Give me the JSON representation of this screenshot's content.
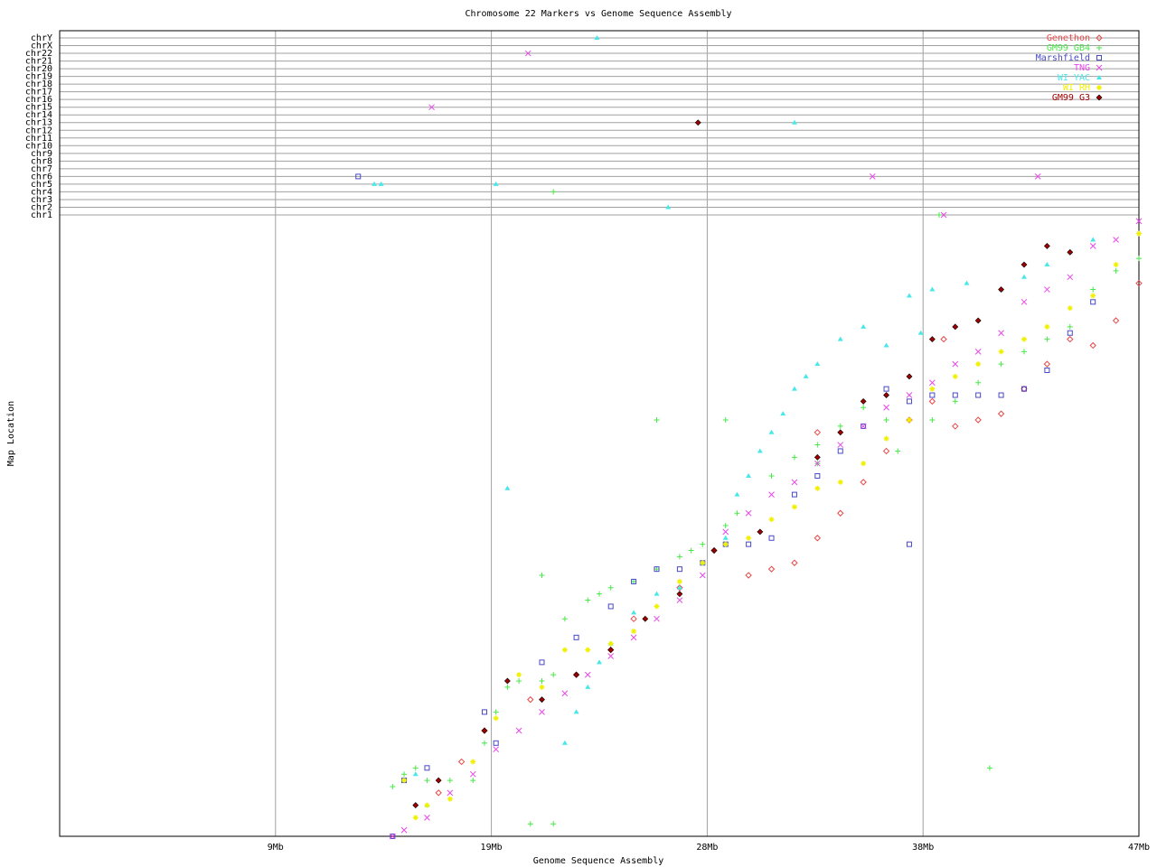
{
  "chart_data": {
    "type": "scatter",
    "title": "Chromosome 22 Markers vs Genome Sequence Assembly",
    "x_label": "Genome Sequence Assembly",
    "y_label": "Map Location",
    "xlim": [
      0,
      47
    ],
    "xticks": [
      {
        "value": 9.4,
        "label": "9Mb"
      },
      {
        "value": 18.8,
        "label": "19Mb"
      },
      {
        "value": 28.2,
        "label": "28Mb"
      },
      {
        "value": 37.6,
        "label": "38Mb"
      },
      {
        "value": 47,
        "label": "47Mb"
      }
    ],
    "ylim": [
      0,
      100
    ],
    "chromosomes": [
      "chrY",
      "chrX",
      "chr22",
      "chr21",
      "chr20",
      "chr19",
      "chr18",
      "chr17",
      "chr16",
      "chr15",
      "chr14",
      "chr13",
      "chr12",
      "chr11",
      "chr10",
      "chr9",
      "chr8",
      "chr7",
      "chr6",
      "chr5",
      "chr4",
      "chr3",
      "chr2",
      "chr1"
    ],
    "grid": true,
    "legend": "upper right",
    "series": [
      {
        "name": "Genethon",
        "color": "#e84848",
        "marker": "diamond",
        "x": [
          16.5,
          17.5,
          18.5,
          20.5,
          22.5,
          24,
          25,
          27,
          28.5,
          30,
          31,
          32,
          33,
          34,
          35,
          36,
          37,
          38,
          39,
          40,
          41,
          42,
          43,
          44,
          45,
          46,
          47,
          33,
          38.5
        ],
        "y": [
          7,
          12,
          17,
          22,
          26,
          30,
          35,
          40,
          46,
          42,
          43,
          44,
          48,
          52,
          57,
          62,
          67,
          70,
          66,
          67,
          68,
          72,
          76,
          80,
          79,
          83,
          89,
          65,
          80
        ],
        "chr_x": [],
        "chr": []
      },
      {
        "name": "GM99 GB4",
        "color": "#48e848",
        "marker": "plus",
        "x": [
          14.5,
          15,
          15.5,
          16,
          17,
          18,
          18.5,
          19,
          19.5,
          20,
          21,
          21.5,
          22,
          23,
          24,
          25,
          26,
          27,
          27.5,
          28,
          29,
          29.5,
          31,
          32,
          33,
          34,
          35,
          36,
          37,
          38,
          39,
          40,
          41,
          42,
          43,
          44,
          45,
          46,
          47,
          21,
          23.5,
          26,
          29,
          40.5,
          20.5,
          21.5,
          33,
          36.5
        ],
        "y": [
          8,
          10,
          11,
          9,
          9,
          9,
          15,
          20,
          24,
          25,
          25,
          26,
          35,
          38,
          40,
          41,
          43,
          45,
          46,
          47,
          50,
          52,
          58,
          61,
          63,
          66,
          69,
          67,
          67,
          67,
          70,
          73,
          76,
          78,
          80,
          82,
          88,
          91,
          93,
          42,
          39,
          67,
          67,
          11,
          2,
          2,
          60,
          62
        ],
        "chr_x": [
          21.5,
          38.3
        ],
        "chr": [
          "chr4",
          "chr1"
        ]
      },
      {
        "name": "Marshfield",
        "color": "#4848c8",
        "marker": "square",
        "x": [
          14.5,
          15,
          16,
          18.5,
          19,
          21,
          22.5,
          24,
          25,
          26,
          27,
          28,
          29,
          30,
          31,
          32,
          33,
          34,
          35,
          36,
          37,
          38,
          39,
          40,
          41,
          42,
          43,
          44,
          45,
          37
        ],
        "y": [
          0,
          9,
          11,
          20,
          15,
          28,
          32,
          37,
          41,
          43,
          43,
          44,
          47,
          47,
          48,
          55,
          58,
          62,
          66,
          72,
          70,
          71,
          71,
          71,
          71,
          72,
          75,
          81,
          86,
          47
        ],
        "chr_x": [
          13.0
        ],
        "chr": [
          "chr6"
        ]
      },
      {
        "name": "TNG",
        "color": "#e848e8",
        "marker": "cross",
        "x": [
          14.5,
          15,
          16,
          17,
          18,
          19,
          20,
          21,
          22,
          23,
          24,
          25,
          26,
          27,
          28,
          29,
          30,
          31,
          32,
          33,
          34,
          35,
          36,
          37,
          38,
          39,
          40,
          41,
          42,
          43,
          44,
          45,
          46,
          47
        ],
        "y": [
          0,
          1,
          3,
          7,
          10,
          14,
          17,
          20,
          23,
          26,
          29,
          32,
          35,
          38,
          42,
          49,
          52,
          55,
          57,
          60,
          63,
          66,
          69,
          71,
          73,
          76,
          78,
          81,
          86,
          88,
          90,
          95,
          96,
          99
        ],
        "chr_x": [
          20.4,
          16.2,
          35.4,
          42.6,
          38.5
        ],
        "chr": [
          "chr22",
          "chr15",
          "chr6",
          "chr6",
          "chr1"
        ]
      },
      {
        "name": "WI YAC",
        "color": "#48e8e8",
        "marker": "triangle",
        "x": [
          22,
          22.5,
          23,
          23.5,
          24,
          25,
          26,
          27,
          28,
          29,
          29.5,
          30,
          30.5,
          31,
          31.5,
          32,
          32.5,
          33,
          34,
          35,
          36,
          37,
          37.5,
          38,
          39.5,
          41,
          42,
          43,
          44,
          45,
          19.5,
          15.5,
          16
        ],
        "y": [
          15,
          20,
          24,
          28,
          31,
          36,
          39,
          40,
          44,
          48,
          55,
          58,
          62,
          65,
          68,
          72,
          74,
          76,
          80,
          82,
          79,
          87,
          81,
          88,
          89,
          88,
          90,
          92,
          94,
          96,
          56,
          10,
          5
        ],
        "chr_x": [
          13.7,
          14.0,
          19.0,
          23.4,
          32.0,
          26.5
        ],
        "chr": [
          "chr5",
          "chr5",
          "chr5",
          "chrY",
          "chr13",
          "chr2"
        ]
      },
      {
        "name": "WI RH",
        "color": "#f0f000",
        "marker": "star",
        "x": [
          15,
          15.5,
          16,
          17,
          18,
          19,
          20,
          21,
          22,
          23,
          24,
          25,
          26,
          27,
          28,
          29,
          30,
          31,
          32,
          33,
          34,
          35,
          36,
          37,
          38,
          39,
          40,
          41,
          42,
          43,
          44,
          45,
          46,
          47
        ],
        "y": [
          9,
          3,
          5,
          6,
          12,
          19,
          26,
          24,
          30,
          30,
          31,
          33,
          37,
          41,
          44,
          47,
          48,
          51,
          53,
          56,
          57,
          60,
          64,
          67,
          72,
          74,
          76,
          78,
          80,
          82,
          85,
          87,
          92,
          97
        ],
        "chr_x": [],
        "chr": []
      },
      {
        "name": "GM99 G3",
        "color": "#a00000",
        "marker": "filled-diamond",
        "x": [
          15.5,
          16.5,
          18.5,
          19.5,
          21,
          22.5,
          24,
          25.5,
          27,
          28.5,
          30.5,
          33,
          34,
          35,
          36,
          37,
          38,
          39,
          40,
          41,
          42,
          43,
          44
        ],
        "y": [
          5,
          9,
          17,
          25,
          22,
          26,
          30,
          35,
          39,
          46,
          49,
          61,
          65,
          70,
          71,
          74,
          80,
          82,
          83,
          88,
          92,
          95,
          94
        ],
        "chr_x": [
          27.8
        ],
        "chr": [
          "chr13"
        ]
      }
    ]
  }
}
